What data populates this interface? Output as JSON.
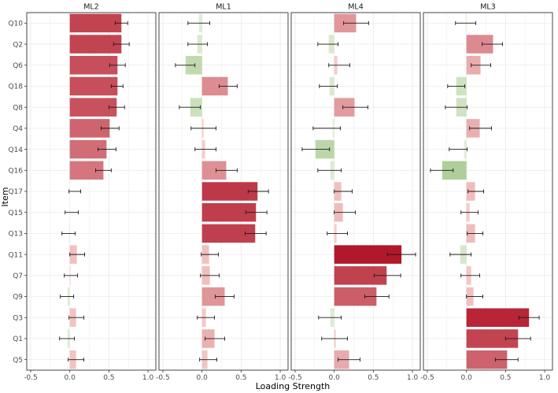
{
  "chart_data": {
    "type": "bar",
    "orientation": "horizontal",
    "facets": [
      "ML2",
      "ML1",
      "ML4",
      "ML3"
    ],
    "categories": [
      "Q10",
      "Q2",
      "Q6",
      "Q18",
      "Q8",
      "Q4",
      "Q14",
      "Q16",
      "Q17",
      "Q15",
      "Q13",
      "Q11",
      "Q7",
      "Q9",
      "Q3",
      "Q1",
      "Q5"
    ],
    "series": [
      {
        "name": "ML2",
        "values": [
          0.66,
          0.66,
          0.61,
          0.61,
          0.6,
          0.51,
          0.47,
          0.43,
          0.0,
          0.0,
          -0.01,
          0.09,
          0.01,
          -0.03,
          0.08,
          -0.03,
          0.08
        ],
        "lower": [
          0.58,
          0.56,
          0.51,
          0.53,
          0.5,
          0.4,
          0.36,
          0.33,
          -0.01,
          -0.06,
          -0.1,
          0.0,
          -0.07,
          -0.12,
          -0.01,
          -0.13,
          -0.02
        ],
        "upper": [
          0.74,
          0.76,
          0.71,
          0.68,
          0.7,
          0.63,
          0.59,
          0.53,
          0.14,
          0.11,
          0.07,
          0.19,
          0.1,
          0.05,
          0.18,
          0.06,
          0.18
        ]
      },
      {
        "name": "ML1",
        "values": [
          -0.04,
          -0.06,
          -0.21,
          0.33,
          -0.15,
          0.02,
          0.04,
          0.31,
          0.71,
          0.69,
          0.68,
          0.09,
          0.1,
          0.29,
          0.05,
          0.16,
          0.07
        ],
        "lower": [
          -0.18,
          -0.18,
          -0.34,
          0.22,
          -0.29,
          -0.14,
          -0.09,
          0.18,
          0.59,
          0.56,
          0.55,
          -0.01,
          -0.02,
          0.17,
          -0.06,
          0.04,
          -0.03
        ],
        "upper": [
          0.1,
          0.07,
          -0.09,
          0.45,
          -0.02,
          0.18,
          0.18,
          0.45,
          0.85,
          0.83,
          0.82,
          0.21,
          0.22,
          0.41,
          0.16,
          0.29,
          0.19
        ]
      },
      {
        "name": "ML4",
        "values": [
          0.28,
          -0.07,
          0.04,
          -0.06,
          0.26,
          -0.02,
          -0.24,
          -0.05,
          0.09,
          0.11,
          0.03,
          0.86,
          0.67,
          0.54,
          -0.05,
          0.02,
          0.19
        ],
        "lower": [
          0.12,
          -0.21,
          -0.07,
          -0.19,
          0.11,
          -0.27,
          -0.41,
          -0.21,
          0.0,
          0.0,
          -0.09,
          0.68,
          0.51,
          0.39,
          -0.2,
          -0.16,
          0.05
        ],
        "upper": [
          0.44,
          0.05,
          0.2,
          0.04,
          0.43,
          0.08,
          -0.06,
          0.09,
          0.23,
          0.27,
          0.17,
          1.04,
          0.85,
          0.7,
          0.09,
          0.17,
          0.33
        ]
      },
      {
        "name": "ML3",
        "values": [
          -0.01,
          0.34,
          0.18,
          -0.13,
          -0.13,
          0.17,
          -0.03,
          -0.31,
          0.11,
          0.04,
          0.11,
          -0.08,
          0.06,
          0.09,
          0.8,
          0.66,
          0.52
        ],
        "lower": [
          -0.14,
          0.2,
          0.06,
          -0.24,
          -0.27,
          0.04,
          -0.22,
          -0.46,
          0.02,
          -0.07,
          0.01,
          -0.21,
          -0.07,
          0.0,
          0.67,
          0.5,
          0.37
        ],
        "upper": [
          0.12,
          0.46,
          0.31,
          -0.02,
          0.01,
          0.32,
          0.01,
          -0.17,
          0.22,
          0.15,
          0.21,
          0.06,
          0.17,
          0.21,
          0.93,
          0.82,
          0.66
        ]
      }
    ],
    "xlabel": "Loading Strength",
    "ylabel": "Item",
    "xlim": [
      -0.55,
      1.1
    ],
    "xticks": [
      -0.5,
      0.0,
      0.5,
      1.0
    ],
    "xtick_labels": [
      "-0.5",
      "0.0",
      "0.5",
      "1.0"
    ],
    "grid": true,
    "colors": {
      "positive": "#b2182b",
      "light_positive": "#f7d4d0",
      "negative": "#4d9221",
      "light_negative": "#e6f0dd",
      "panel_background": "#ffffff",
      "grid": "#ebebeb",
      "errorbar": "#1a1a1a",
      "strip_background": "#ffffff",
      "panel_border": "#333333"
    }
  }
}
